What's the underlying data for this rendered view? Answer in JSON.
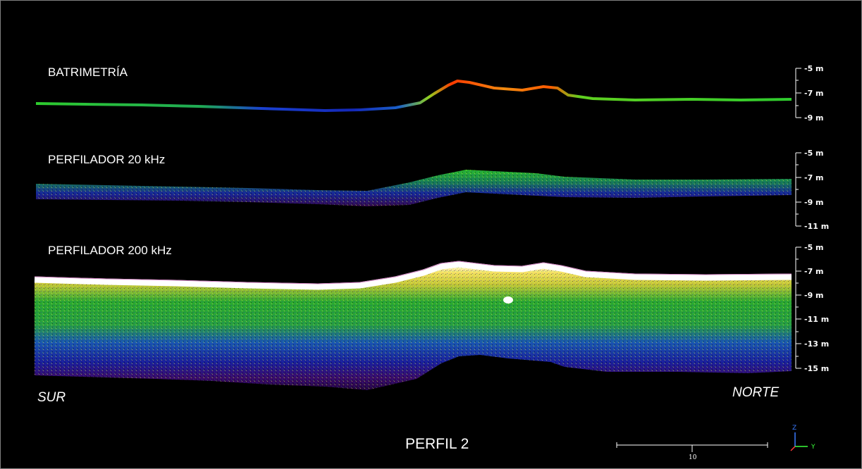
{
  "panels": [
    {
      "title": "BATRIMETRÍA",
      "depth_ticks": [
        "-5 m",
        "-7 m",
        "-9 m"
      ]
    },
    {
      "title": "PERFILADOR 20 kHz",
      "depth_ticks": [
        "-5 m",
        "-7 m",
        "-9 m",
        "-11 m"
      ]
    },
    {
      "title": "PERFILADOR 200 kHz",
      "depth_ticks": [
        "-5 m",
        "-7 m",
        "-9 m",
        "-11 m",
        "-13 m",
        "-15 m"
      ]
    }
  ],
  "directions": {
    "left": "SUR",
    "right": "NORTE"
  },
  "profile_title": "PERFIL 2",
  "scale_bar": {
    "value": "10"
  },
  "axis_indicator": {
    "vertical": "Z",
    "horizontal": "Y"
  },
  "colors": {
    "background": "#000000",
    "bathymetry_shallow": "#ff2a00",
    "bathymetry_mid": "#22cc22",
    "bathymetry_deep": "#1a33cc",
    "sediment_surface": "#ffffff",
    "sediment_high": "#f0e040",
    "sediment_mid": "#22b022",
    "sediment_low": "#1a2fb0",
    "sediment_deep": "#4a0a6a"
  }
}
